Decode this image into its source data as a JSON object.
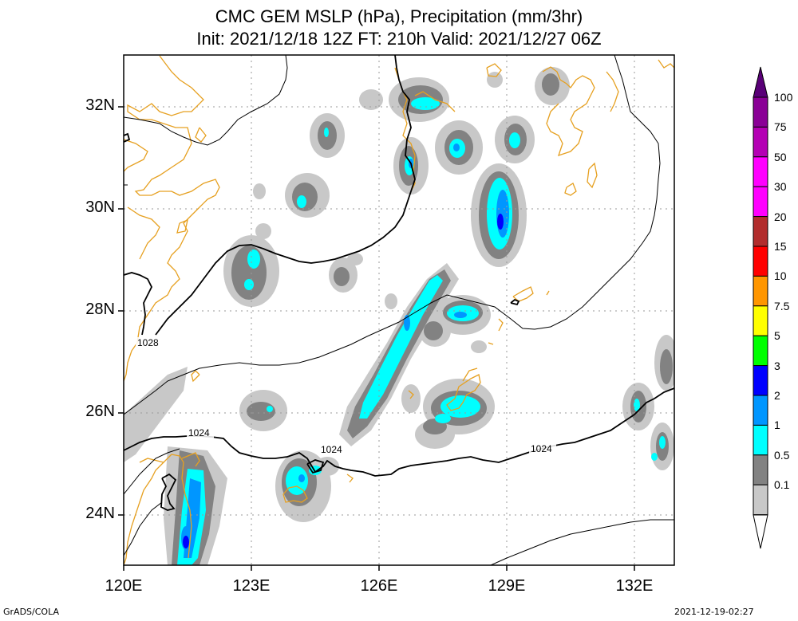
{
  "title": {
    "line1": "CMC GEM MSLP (hPa), Precipitation (mm/3hr)",
    "line2": "Init: 2021/12/18 12Z  FT: 210h  Valid: 2021/12/27 06Z"
  },
  "axes": {
    "lat_labels": [
      "32N",
      "30N",
      "28N",
      "26N",
      "24N"
    ],
    "lon_labels": [
      "120E",
      "123E",
      "126E",
      "129E",
      "132E"
    ]
  },
  "isobar_labels": [
    "1028",
    "1024",
    "1024",
    "1024"
  ],
  "colorbar": {
    "labels": [
      "100",
      "75",
      "50",
      "30",
      "20",
      "15",
      "10",
      "7.5",
      "5",
      "3",
      "2",
      "1",
      "0.5",
      "0.1"
    ],
    "colors": [
      "#8a0096",
      "#b400b4",
      "#ff00ff",
      "#ff00ff",
      "#b22d2d",
      "#ff0000",
      "#ff9600",
      "#ffff00",
      "#00ff00",
      "#0000ff",
      "#0096ff",
      "#00ffff",
      "#828282",
      "#c8c8c8"
    ],
    "top_color": "#5a0078"
  },
  "footer": {
    "left": "GrADS/COLA",
    "right": "2021-12-19-02:27"
  },
  "colors": {
    "coast": "#e6a020",
    "isobar": "#000000",
    "grid": "#9a9a9a"
  }
}
